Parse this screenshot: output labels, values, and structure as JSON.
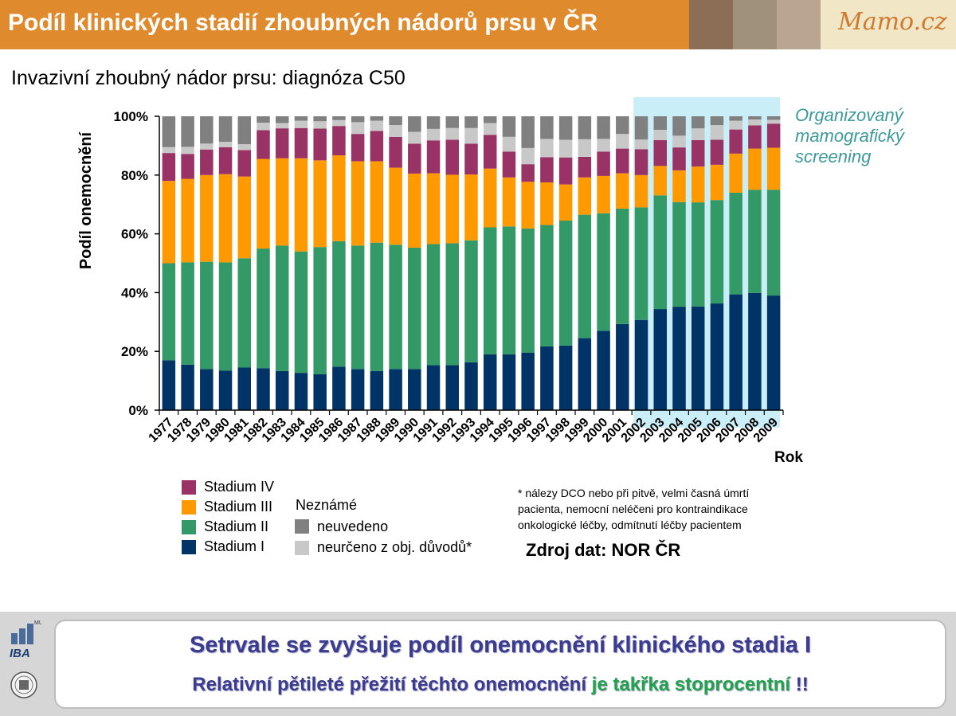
{
  "header": {
    "title": "Podíl klinických stadií zhoubných nádorů prsu v ČR",
    "brand": "Mamo.cz",
    "swatch_colors": [
      "#8c6d55",
      "#9f917c",
      "#baa592"
    ]
  },
  "subtitle": "Invazivní zhoubný nádor prsu: diagnóza C50",
  "screening_label": [
    "Organizovaný",
    "mamografický",
    "screening"
  ],
  "chart_data": {
    "type": "bar",
    "stacked": true,
    "xlabel": "Rok",
    "ylabel": "Podíl onemocnění",
    "ylim": [
      0,
      100
    ],
    "yticks": [
      "0%",
      "20%",
      "40%",
      "60%",
      "80%",
      "100%"
    ],
    "categories": [
      "1977",
      "1978",
      "1979",
      "1980",
      "1981",
      "1982",
      "1983",
      "1984",
      "1985",
      "1986",
      "1987",
      "1988",
      "1989",
      "1990",
      "1991",
      "1992",
      "1993",
      "1994",
      "1995",
      "1996",
      "1997",
      "1998",
      "1999",
      "2000",
      "2001",
      "2002",
      "2003",
      "2004",
      "2005",
      "2006",
      "2007",
      "2008",
      "2009"
    ],
    "highlight_range": [
      "2002",
      "2009"
    ],
    "series": [
      {
        "name": "Stadium I",
        "color": "#003366",
        "values": [
          17,
          15.5,
          14,
          13.5,
          14.5,
          14.3,
          13.3,
          12.7,
          12.2,
          14.8,
          14,
          13.3,
          14,
          14,
          15.3,
          15.3,
          16.3,
          19,
          19,
          19.6,
          21.7,
          22,
          24.5,
          27,
          29.3,
          30.7,
          34.4,
          35.2,
          35.3,
          36.3,
          39.4,
          39.9,
          39
        ]
      },
      {
        "name": "Stadium II",
        "color": "#339966",
        "values": [
          33,
          34.8,
          36.5,
          36.8,
          37.2,
          40.7,
          42.7,
          41.3,
          43.3,
          42.7,
          42,
          43.7,
          42.3,
          41.3,
          41.2,
          41.5,
          41.5,
          43.2,
          43.5,
          42.2,
          41.3,
          42.5,
          42,
          40,
          39.3,
          38.3,
          38.7,
          35.6,
          35.4,
          35.2,
          34.6,
          35.1,
          36
        ]
      },
      {
        "name": "Stadium III",
        "color": "#ff9900",
        "values": [
          28,
          28.4,
          29.5,
          30,
          27.8,
          30.5,
          29.7,
          31.7,
          29.5,
          29.2,
          28.7,
          27.7,
          26.2,
          25.2,
          24.1,
          23.3,
          22.4,
          20,
          16.7,
          15.9,
          14.5,
          12.3,
          12.7,
          12.7,
          12,
          11,
          10,
          10.8,
          12.2,
          12,
          13.3,
          14,
          14.3
        ]
      },
      {
        "name": "Stadium IV",
        "color": "#993366",
        "values": [
          9.5,
          8.5,
          8.7,
          9.2,
          9,
          9.8,
          10.2,
          10.3,
          10.8,
          10,
          9.3,
          10.3,
          10.5,
          10.2,
          11.2,
          11.9,
          10.5,
          11.5,
          8.8,
          6,
          8.6,
          9.2,
          7,
          8.3,
          8.4,
          8.8,
          8.8,
          7.8,
          9,
          8.5,
          8.2,
          7.9,
          8.2
        ]
      },
      {
        "name": "neurčeno z obj. důvodů*",
        "color": "#c8c8c8",
        "values": [
          2,
          2.4,
          2,
          1.8,
          2,
          2.5,
          1.8,
          2.5,
          2.5,
          2,
          4,
          3.5,
          4,
          4,
          3.9,
          4,
          5.3,
          4,
          5,
          5.5,
          6.2,
          6,
          6,
          4.3,
          5,
          3.3,
          3.5,
          4,
          4,
          5,
          3,
          2,
          1.3
        ]
      },
      {
        "name": "neuvedeno",
        "color": "#808080",
        "values": [
          10.5,
          10.4,
          9.3,
          8.7,
          9.5,
          2.2,
          2.3,
          1.5,
          1.7,
          1.3,
          2,
          1.5,
          3,
          5.3,
          4.3,
          4,
          4,
          2.3,
          7,
          10.8,
          7.7,
          8,
          7.8,
          7.7,
          6,
          7.9,
          4.6,
          6.6,
          4.1,
          3,
          1.5,
          1.1,
          1.2
        ]
      }
    ],
    "legend": {
      "stages": [
        "Stadium IV",
        "Stadium III",
        "Stadium II",
        "Stadium I"
      ],
      "unknown_header": "Neznámé",
      "unknown": [
        "neuvedeno",
        "neurčeno z obj. důvodů*"
      ]
    }
  },
  "footnote": [
    "* nálezy DCO nebo při pitvě, velmi časná úmrtí",
    "pacienta, nemocní neléčeni pro kontraindikace",
    "onkologické léčby, odmítnutí léčby pacientem"
  ],
  "source": "Zdroj dat: NOR ČR",
  "message": {
    "line1": "Setrvale se zvyšuje podíl onemocnění klinického stadia I",
    "line2_a": "Relativní pětileté přežití těchto onemocnění ",
    "line2_b": "je takřka stoprocentní",
    "line2_c": " !!"
  },
  "logo": {
    "iba": "IBA",
    "iba_super": "MU"
  }
}
